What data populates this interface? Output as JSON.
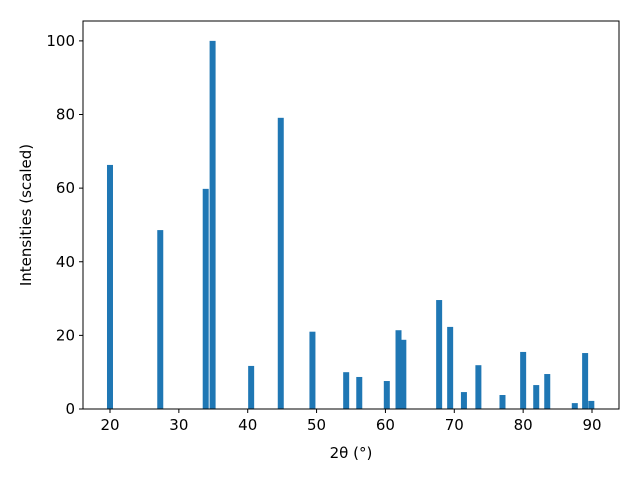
{
  "chart_data": {
    "type": "bar",
    "x_label": "2θ (°)",
    "y_label": "Intensities (scaled)",
    "x": [
      20,
      27.3,
      33.9,
      34.9,
      40.5,
      44.8,
      49.4,
      54.3,
      56.2,
      60.2,
      61.9,
      62.6,
      67.8,
      69.4,
      71.4,
      73.5,
      77,
      80,
      81.9,
      83.5,
      87.5,
      89,
      89.9
    ],
    "values": [
      66.3,
      48.6,
      59.8,
      100,
      11.7,
      79.1,
      21,
      10,
      8.7,
      7.6,
      21.4,
      18.8,
      29.6,
      22.3,
      4.6,
      11.9,
      3.8,
      15.5,
      6.5,
      9.5,
      1.6,
      15.2,
      2.2
    ],
    "color": "#1f77b4",
    "xlim": [
      16.08,
      93.92
    ],
    "xticks": [
      20,
      30,
      40,
      50,
      60,
      70,
      80,
      90
    ],
    "ylim": [
      0,
      105.4
    ],
    "yticks": [
      0,
      20,
      40,
      60,
      80,
      100
    ],
    "grid": false
  }
}
